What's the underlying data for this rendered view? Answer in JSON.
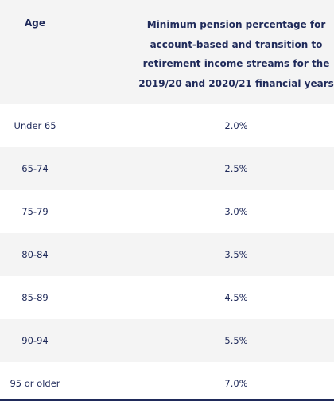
{
  "header": {
    "age": "Age",
    "pct_line1": "Minimum pension percentage for",
    "pct_line2": "account-based and transition to",
    "pct_line3": "retirement income streams for the",
    "pct_line4": "2019/20 and 2020/21 financial years"
  },
  "rows": [
    {
      "age": "Under 65",
      "pct": "2.0%"
    },
    {
      "age": "65-74",
      "pct": "2.5%"
    },
    {
      "age": "75-79",
      "pct": "3.0%"
    },
    {
      "age": "80-84",
      "pct": "3.5%"
    },
    {
      "age": "85-89",
      "pct": "4.5%"
    },
    {
      "age": "90-94",
      "pct": "5.5%"
    },
    {
      "age": "95 or older",
      "pct": "7.0%"
    }
  ]
}
